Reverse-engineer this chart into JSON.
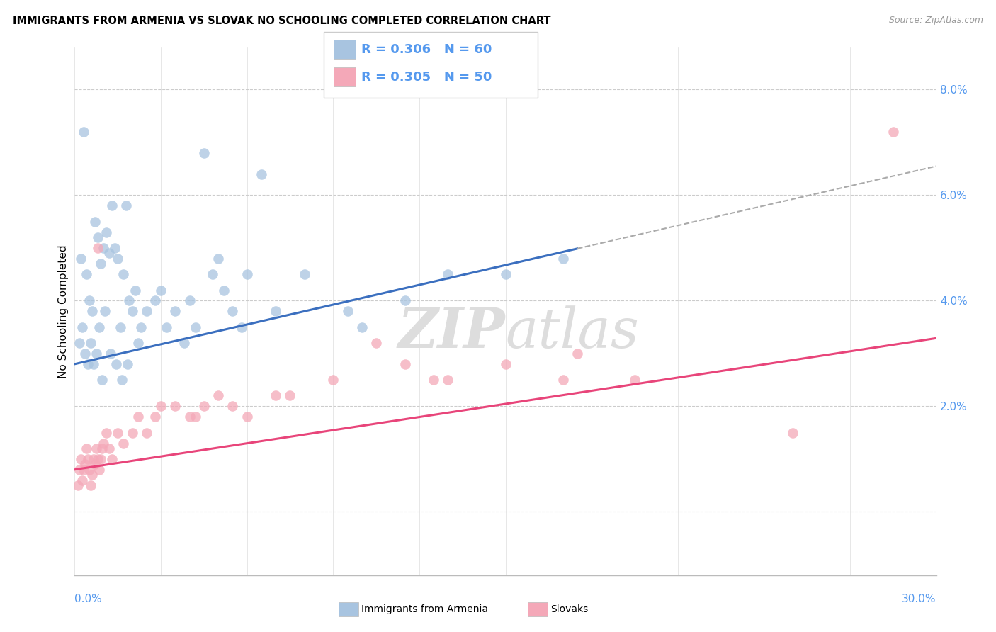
{
  "title": "IMMIGRANTS FROM ARMENIA VS SLOVAK NO SCHOOLING COMPLETED CORRELATION CHART",
  "source": "Source: ZipAtlas.com",
  "ylabel": "No Schooling Completed",
  "xmin": 0.0,
  "xmax": 30.0,
  "ymin": -1.2,
  "ymax": 8.8,
  "ytick_vals": [
    0.0,
    2.0,
    4.0,
    6.0,
    8.0
  ],
  "ytick_labels": [
    "",
    "2.0%",
    "4.0%",
    "6.0%",
    "8.0%"
  ],
  "legend_r1": "R = 0.306",
  "legend_n1": "N = 60",
  "legend_r2": "R = 0.305",
  "legend_n2": "N = 50",
  "color_armenia": "#A8C4E0",
  "color_slovak": "#F4A8B8",
  "color_line_armenia": "#3B6FBF",
  "color_line_slovak": "#E8457A",
  "color_axis_labels": "#5599EE",
  "color_grid": "#CCCCCC",
  "color_source": "#999999",
  "watermark_color": "#DDDDDD",
  "arm_line_b0": 2.8,
  "arm_line_b1": 0.125,
  "slo_line_b0": 0.8,
  "slo_line_b1": 0.083,
  "arm_dash_start": 17.5,
  "armenia_x": [
    0.3,
    1.8,
    4.5,
    6.5,
    0.2,
    0.4,
    0.5,
    0.6,
    0.7,
    0.8,
    0.9,
    1.0,
    1.1,
    1.2,
    1.3,
    1.4,
    1.5,
    1.6,
    1.7,
    1.9,
    2.0,
    2.1,
    2.3,
    2.5,
    2.8,
    3.0,
    3.2,
    3.5,
    3.8,
    4.0,
    4.2,
    4.8,
    5.0,
    5.2,
    5.5,
    5.8,
    6.0,
    7.0,
    8.0,
    9.5,
    10.0,
    11.5,
    13.0,
    15.0,
    17.0,
    0.15,
    0.25,
    0.35,
    0.45,
    0.55,
    0.65,
    0.75,
    0.85,
    0.95,
    1.05,
    1.25,
    1.45,
    1.65,
    1.85,
    2.2
  ],
  "armenia_y": [
    7.2,
    5.8,
    6.8,
    6.4,
    4.8,
    4.5,
    4.0,
    3.8,
    5.5,
    5.2,
    4.7,
    5.0,
    5.3,
    4.9,
    5.8,
    5.0,
    4.8,
    3.5,
    4.5,
    4.0,
    3.8,
    4.2,
    3.5,
    3.8,
    4.0,
    4.2,
    3.5,
    3.8,
    3.2,
    4.0,
    3.5,
    4.5,
    4.8,
    4.2,
    3.8,
    3.5,
    4.5,
    3.8,
    4.5,
    3.8,
    3.5,
    4.0,
    4.5,
    4.5,
    4.8,
    3.2,
    3.5,
    3.0,
    2.8,
    3.2,
    2.8,
    3.0,
    3.5,
    2.5,
    3.8,
    3.0,
    2.8,
    2.5,
    2.8,
    3.2
  ],
  "slovak_x": [
    0.1,
    0.15,
    0.2,
    0.25,
    0.3,
    0.35,
    0.4,
    0.45,
    0.5,
    0.55,
    0.6,
    0.65,
    0.7,
    0.75,
    0.8,
    0.85,
    0.9,
    0.95,
    1.0,
    1.1,
    1.2,
    1.3,
    1.5,
    1.7,
    2.0,
    2.2,
    2.5,
    2.8,
    3.0,
    3.5,
    4.0,
    4.5,
    5.0,
    6.0,
    7.5,
    9.0,
    11.5,
    13.0,
    15.0,
    17.0,
    19.5,
    28.5,
    7.0,
    10.5,
    0.8,
    12.5,
    17.5,
    25.0,
    5.5,
    4.2
  ],
  "slovak_y": [
    0.5,
    0.8,
    1.0,
    0.6,
    0.8,
    0.9,
    1.2,
    1.0,
    0.8,
    0.5,
    0.7,
    1.0,
    0.9,
    1.2,
    1.0,
    0.8,
    1.0,
    1.2,
    1.3,
    1.5,
    1.2,
    1.0,
    1.5,
    1.3,
    1.5,
    1.8,
    1.5,
    1.8,
    2.0,
    2.0,
    1.8,
    2.0,
    2.2,
    1.8,
    2.2,
    2.5,
    2.8,
    2.5,
    2.8,
    2.5,
    2.5,
    7.2,
    2.2,
    3.2,
    5.0,
    2.5,
    3.0,
    1.5,
    2.0,
    1.8
  ]
}
